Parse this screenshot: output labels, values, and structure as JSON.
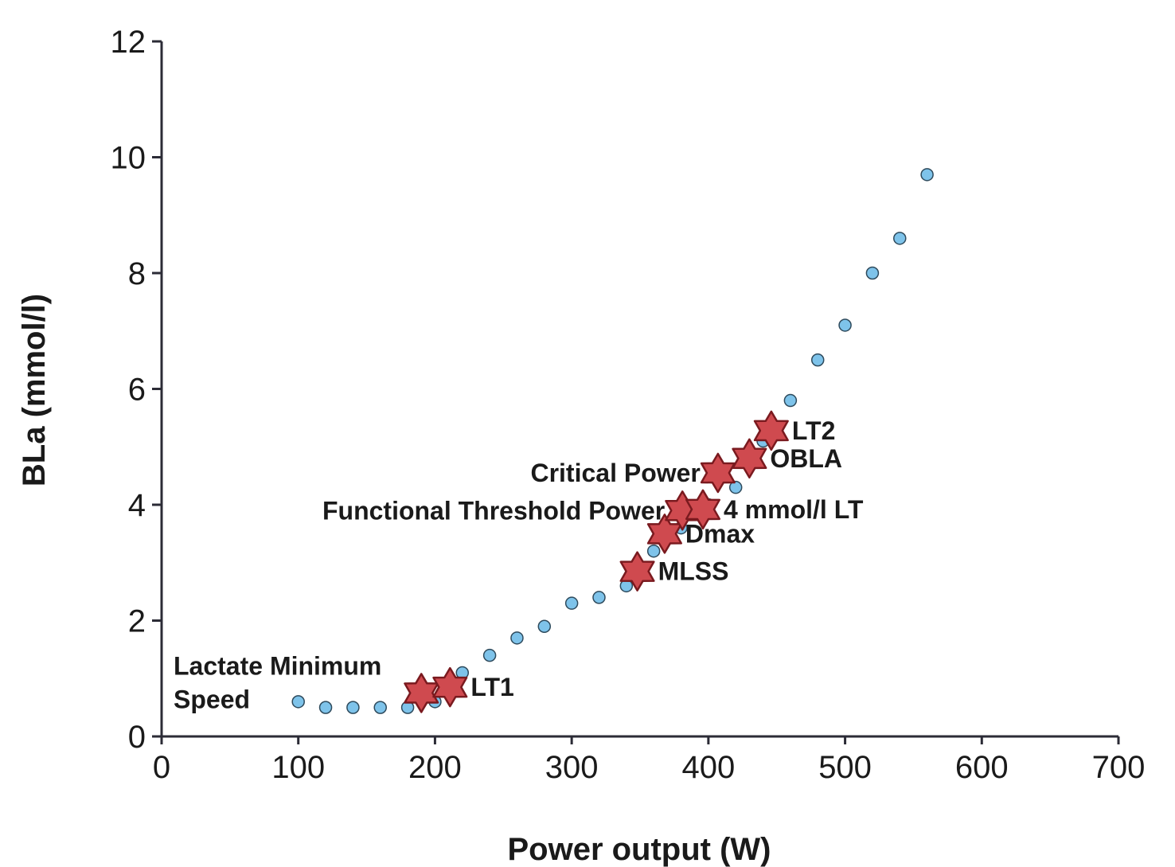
{
  "chart_data": {
    "type": "scatter",
    "xlabel": "Power output (W)",
    "ylabel": "BLa (mmol/l)",
    "xlim": [
      0,
      700
    ],
    "ylim": [
      0,
      12
    ],
    "x_ticks": [
      0,
      100,
      200,
      300,
      400,
      500,
      600,
      700
    ],
    "y_ticks": [
      0,
      2,
      4,
      6,
      8,
      10,
      12
    ],
    "grid": false,
    "series": [
      {
        "marker": "circle",
        "color": "#7ec3ea",
        "points": [
          {
            "x": 100,
            "y": 0.6
          },
          {
            "x": 120,
            "y": 0.5
          },
          {
            "x": 140,
            "y": 0.5
          },
          {
            "x": 160,
            "y": 0.5
          },
          {
            "x": 180,
            "y": 0.5
          },
          {
            "x": 200,
            "y": 0.6
          },
          {
            "x": 220,
            "y": 1.1
          },
          {
            "x": 240,
            "y": 1.4
          },
          {
            "x": 260,
            "y": 1.7
          },
          {
            "x": 280,
            "y": 1.9
          },
          {
            "x": 300,
            "y": 2.3
          },
          {
            "x": 320,
            "y": 2.4
          },
          {
            "x": 340,
            "y": 2.6
          },
          {
            "x": 360,
            "y": 3.2
          },
          {
            "x": 380,
            "y": 3.6
          },
          {
            "x": 400,
            "y": 4.0
          },
          {
            "x": 420,
            "y": 4.3
          },
          {
            "x": 440,
            "y": 5.1
          },
          {
            "x": 460,
            "y": 5.8
          },
          {
            "x": 480,
            "y": 6.5
          },
          {
            "x": 500,
            "y": 7.1
          },
          {
            "x": 520,
            "y": 8.0
          },
          {
            "x": 540,
            "y": 8.6
          },
          {
            "x": 560,
            "y": 9.7
          }
        ]
      },
      {
        "marker": "star",
        "color": "#cf4a4f",
        "points": [
          {
            "x": 190,
            "y": 0.75,
            "label": "Lactate Minimum Speed",
            "label_lines": [
              "Lactate Minimum",
              "Speed"
            ],
            "label_side": "left"
          },
          {
            "x": 211,
            "y": 0.85,
            "label": "LT1",
            "label_side": "right"
          },
          {
            "x": 348,
            "y": 2.85,
            "label": "MLSS",
            "label_side": "right"
          },
          {
            "x": 368,
            "y": 3.5,
            "label": "Dmax",
            "label_side": "right"
          },
          {
            "x": 381,
            "y": 3.9,
            "label": "Functional Threshold Power",
            "label_side": "left"
          },
          {
            "x": 396,
            "y": 3.92,
            "label": "4 mmol/l LT",
            "label_side": "right"
          },
          {
            "x": 407,
            "y": 4.55,
            "label": "Critical Power",
            "label_side": "left"
          },
          {
            "x": 430,
            "y": 4.8,
            "label": "OBLA",
            "label_side": "right"
          },
          {
            "x": 446,
            "y": 5.28,
            "label": "LT2",
            "label_side": "right"
          }
        ]
      }
    ]
  }
}
